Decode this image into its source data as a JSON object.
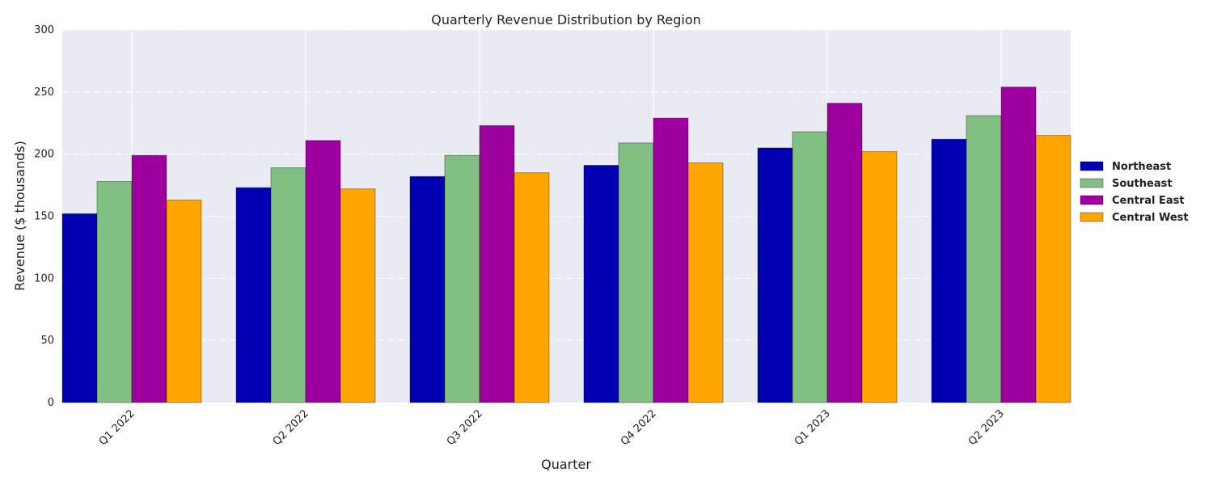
{
  "chart_data": {
    "type": "bar",
    "title": "Quarterly Revenue Distribution by Region",
    "xlabel": "Quarter",
    "ylabel": "Revenue ($ thousands)",
    "categories": [
      "Q1 2022",
      "Q2 2022",
      "Q3 2022",
      "Q4 2022",
      "Q1 2023",
      "Q2 2023"
    ],
    "ylim": [
      0,
      300
    ],
    "yticks": [
      "0",
      "50",
      "100",
      "150",
      "200",
      "250",
      "300"
    ],
    "grid": true,
    "legend_position": "right",
    "series": [
      {
        "name": "Northeast",
        "color": "#0000b3",
        "values": [
          152,
          173,
          182,
          191,
          205,
          212
        ]
      },
      {
        "name": "Southeast",
        "color": "#82bf82",
        "values": [
          178,
          189,
          199,
          209,
          218,
          231
        ]
      },
      {
        "name": "Central East",
        "color": "#9e009e",
        "values": [
          199,
          211,
          223,
          229,
          241,
          254
        ]
      },
      {
        "name": "Central West",
        "color": "#ffa500",
        "values": [
          163,
          172,
          185,
          193,
          202,
          215
        ]
      }
    ],
    "colors": {
      "plot_background": "#eaeaf2",
      "grid": "#ffffff"
    }
  }
}
